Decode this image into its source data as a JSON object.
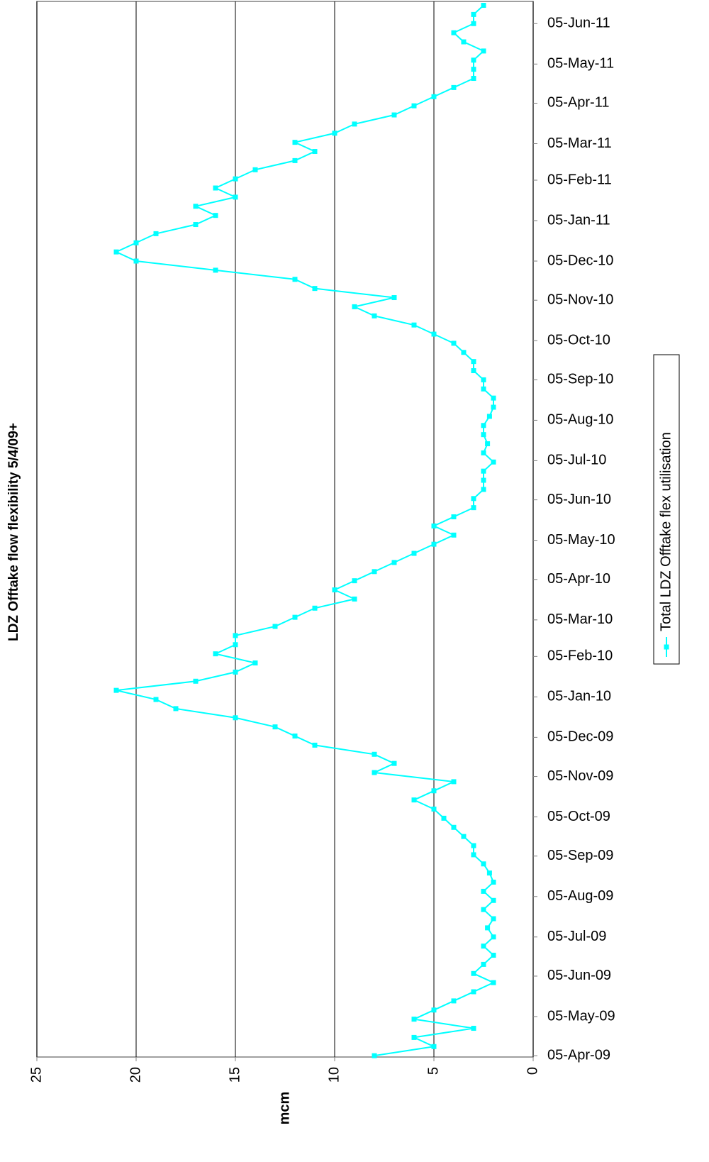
{
  "chart_data": {
    "type": "line",
    "title": "LDZ Offtake flow flexibility 5/4/09+",
    "y_label": "mcm",
    "ylim": [
      0,
      25
    ],
    "yticks": [
      0,
      5,
      10,
      15,
      20,
      25
    ],
    "xlim": [
      "2009-04-04",
      "2011-06-22"
    ],
    "xticks": [
      {
        "value": "2009-04-05",
        "label": "05-Apr-09"
      },
      {
        "value": "2009-05-05",
        "label": "05-May-09"
      },
      {
        "value": "2009-06-05",
        "label": "05-Jun-09"
      },
      {
        "value": "2009-07-05",
        "label": "05-Jul-09"
      },
      {
        "value": "2009-08-05",
        "label": "05-Aug-09"
      },
      {
        "value": "2009-09-05",
        "label": "05-Sep-09"
      },
      {
        "value": "2009-10-05",
        "label": "05-Oct-09"
      },
      {
        "value": "2009-11-05",
        "label": "05-Nov-09"
      },
      {
        "value": "2009-12-05",
        "label": "05-Dec-09"
      },
      {
        "value": "2010-01-05",
        "label": "05-Jan-10"
      },
      {
        "value": "2010-02-05",
        "label": "05-Feb-10"
      },
      {
        "value": "2010-03-05",
        "label": "05-Mar-10"
      },
      {
        "value": "2010-04-05",
        "label": "05-Apr-10"
      },
      {
        "value": "2010-05-05",
        "label": "05-May-10"
      },
      {
        "value": "2010-06-05",
        "label": "05-Jun-10"
      },
      {
        "value": "2010-07-05",
        "label": "05-Jul-10"
      },
      {
        "value": "2010-08-05",
        "label": "05-Aug-10"
      },
      {
        "value": "2010-09-05",
        "label": "05-Sep-10"
      },
      {
        "value": "2010-10-05",
        "label": "05-Oct-10"
      },
      {
        "value": "2010-11-05",
        "label": "05-Nov-10"
      },
      {
        "value": "2010-12-05",
        "label": "05-Dec-10"
      },
      {
        "value": "2011-01-05",
        "label": "05-Jan-11"
      },
      {
        "value": "2011-02-05",
        "label": "05-Feb-11"
      },
      {
        "value": "2011-03-05",
        "label": "05-Mar-11"
      },
      {
        "value": "2011-04-05",
        "label": "05-Apr-11"
      },
      {
        "value": "2011-05-05",
        "label": "05-May-11"
      },
      {
        "value": "2011-06-05",
        "label": "05-Jun-11"
      }
    ],
    "grid": true,
    "legend": "right",
    "x": [
      "2009-04-05",
      "2009-04-12",
      "2009-04-19",
      "2009-04-26",
      "2009-05-03",
      "2009-05-10",
      "2009-05-17",
      "2009-05-24",
      "2009-05-31",
      "2009-06-07",
      "2009-06-14",
      "2009-06-21",
      "2009-06-28",
      "2009-07-05",
      "2009-07-12",
      "2009-07-19",
      "2009-07-26",
      "2009-08-02",
      "2009-08-09",
      "2009-08-16",
      "2009-08-23",
      "2009-08-30",
      "2009-09-06",
      "2009-09-13",
      "2009-09-20",
      "2009-09-27",
      "2009-10-04",
      "2009-10-11",
      "2009-10-18",
      "2009-10-25",
      "2009-11-01",
      "2009-11-08",
      "2009-11-15",
      "2009-11-22",
      "2009-11-29",
      "2009-12-06",
      "2009-12-13",
      "2009-12-20",
      "2009-12-27",
      "2010-01-03",
      "2010-01-10",
      "2010-01-17",
      "2010-01-24",
      "2010-01-31",
      "2010-02-07",
      "2010-02-14",
      "2010-02-21",
      "2010-02-28",
      "2010-03-07",
      "2010-03-14",
      "2010-03-21",
      "2010-03-28",
      "2010-04-04",
      "2010-04-11",
      "2010-04-18",
      "2010-04-25",
      "2010-05-02",
      "2010-05-09",
      "2010-05-16",
      "2010-05-23",
      "2010-05-30",
      "2010-06-06",
      "2010-06-13",
      "2010-06-20",
      "2010-06-27",
      "2010-07-04",
      "2010-07-11",
      "2010-07-18",
      "2010-07-25",
      "2010-08-01",
      "2010-08-08",
      "2010-08-15",
      "2010-08-22",
      "2010-08-29",
      "2010-09-05",
      "2010-09-12",
      "2010-09-19",
      "2010-09-26",
      "2010-10-03",
      "2010-10-10",
      "2010-10-17",
      "2010-10-24",
      "2010-10-31",
      "2010-11-07",
      "2010-11-14",
      "2010-11-21",
      "2010-11-28",
      "2010-12-05",
      "2010-12-12",
      "2010-12-19",
      "2010-12-26",
      "2011-01-02",
      "2011-01-09",
      "2011-01-16",
      "2011-01-23",
      "2011-01-30",
      "2011-02-06",
      "2011-02-13",
      "2011-02-20",
      "2011-02-27",
      "2011-03-06",
      "2011-03-13",
      "2011-03-20",
      "2011-03-27",
      "2011-04-03",
      "2011-04-10",
      "2011-04-17",
      "2011-04-24",
      "2011-05-01",
      "2011-05-08",
      "2011-05-15",
      "2011-05-22",
      "2011-05-29",
      "2011-06-05",
      "2011-06-12",
      "2011-06-19"
    ],
    "series": [
      {
        "name": "Total LDZ Offtake flex utilisation",
        "color": "#00ffff",
        "values": [
          8,
          5,
          6,
          3,
          6,
          5,
          4,
          3,
          2,
          3,
          2.5,
          2,
          2.5,
          2,
          2.3,
          2,
          2.5,
          2,
          2.5,
          2,
          2.2,
          2.5,
          3,
          3,
          3.5,
          4,
          4.5,
          5,
          6,
          5,
          4,
          8,
          7,
          8,
          11,
          12,
          13,
          15,
          18,
          19,
          21,
          17,
          15,
          14,
          16,
          15,
          15,
          13,
          12,
          11,
          9,
          10,
          9,
          8,
          7,
          6,
          5,
          4,
          5,
          4,
          3,
          3,
          2.5,
          2.5,
          2.5,
          2,
          2.5,
          2.3,
          2.5,
          2.5,
          2.2,
          2,
          2,
          2.5,
          2.5,
          3,
          3,
          3.5,
          4,
          5,
          6,
          8,
          9,
          7,
          11,
          12,
          16,
          20,
          21,
          20,
          19,
          17,
          16,
          17,
          15,
          16,
          15,
          14,
          12,
          11,
          12,
          10,
          9,
          7,
          6,
          5,
          4,
          3,
          3,
          3,
          2.5,
          3.5,
          4,
          3,
          3,
          2.5
        ]
      }
    ]
  }
}
